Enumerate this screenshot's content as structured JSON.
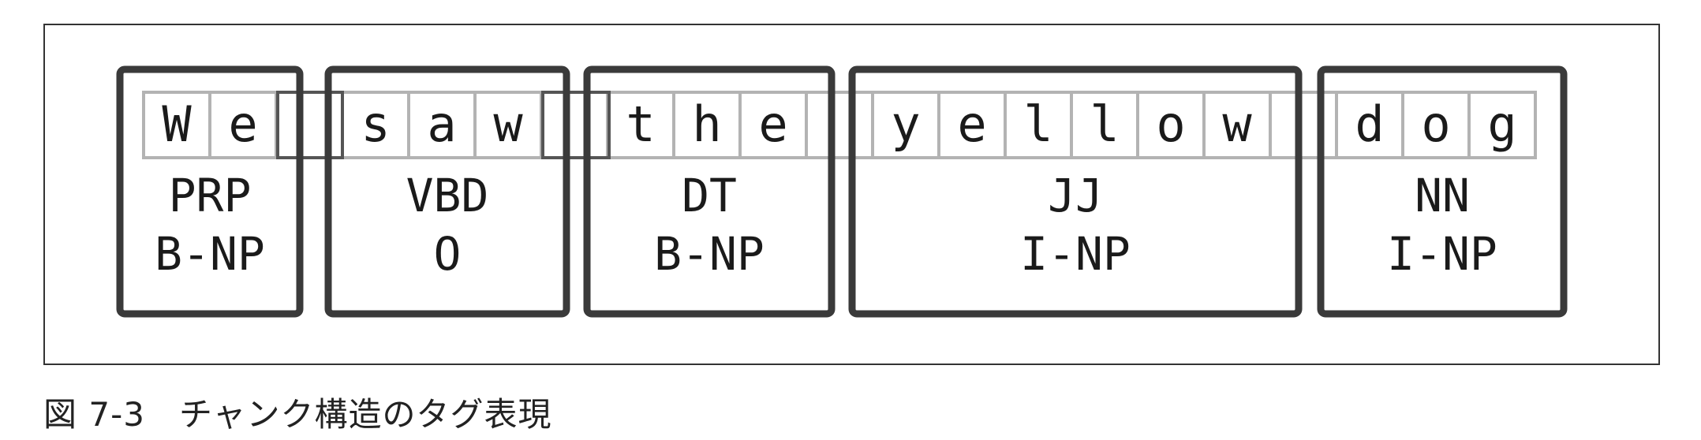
{
  "diagram": {
    "characters": [
      "W",
      "e",
      " ",
      "s",
      "a",
      "w",
      " ",
      "t",
      "h",
      "e",
      " ",
      "y",
      "e",
      "l",
      "l",
      "o",
      "w",
      " ",
      "d",
      "o",
      "g"
    ],
    "chunks": [
      {
        "word": "We",
        "pos": "PRP",
        "chunk_tag": "B-NP"
      },
      {
        "word": "saw",
        "pos": "VBD",
        "chunk_tag": "O"
      },
      {
        "word": "the",
        "pos": "DT",
        "chunk_tag": "B-NP"
      },
      {
        "word": "yellow",
        "pos": "JJ",
        "chunk_tag": "I-NP"
      },
      {
        "word": "dog",
        "pos": "NN",
        "chunk_tag": "I-NP"
      }
    ],
    "colors": {
      "char_cell_border": "#b3b3b3",
      "chunk_box_border": "#3a3a3a",
      "text": "#1a1a1a"
    }
  },
  "caption": "図 7-3　チャンク構造のタグ表現"
}
